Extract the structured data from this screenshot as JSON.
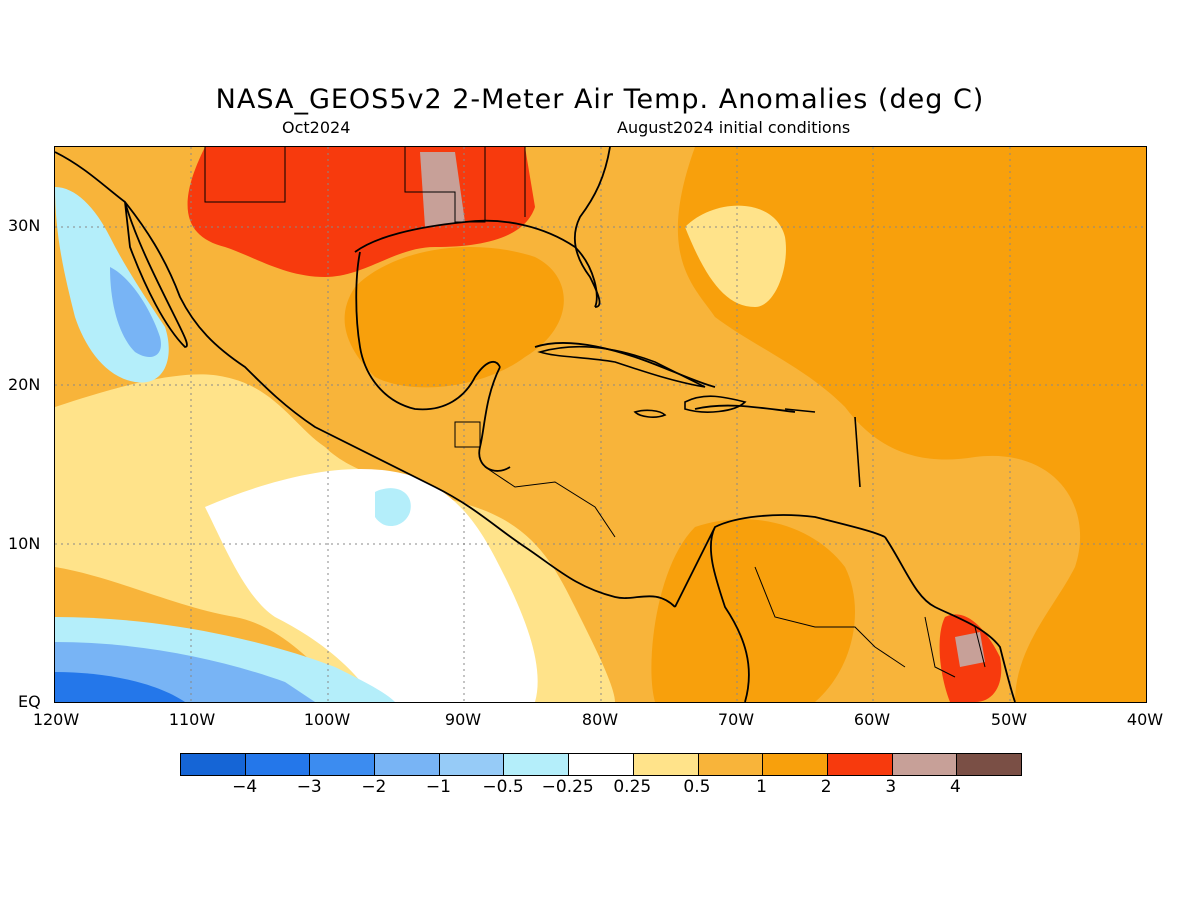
{
  "title": "NASA_GEOS5v2 2-Meter Air Temp. Anomalies (deg C)",
  "subtitle_left": "Oct2024",
  "subtitle_right": "August2024 initial conditions",
  "lat_labels": [
    "30N",
    "20N",
    "10N",
    "EQ"
  ],
  "lon_labels": [
    "120W",
    "110W",
    "100W",
    "90W",
    "80W",
    "70W",
    "60W",
    "50W",
    "40W"
  ],
  "colorbar": {
    "labels": [
      "-4",
      "-3",
      "-2",
      "-1",
      "-0.5",
      "-0.25",
      "0.25",
      "0.5",
      "1",
      "2",
      "3",
      "4"
    ],
    "colors": [
      "#1565d6",
      "#2477ea",
      "#3c8cf0",
      "#78b4f5",
      "#96cbf7",
      "#b4eefa",
      "#ffffff",
      "#ffe38a",
      "#f8b43a",
      "#f8a00c",
      "#f73a0d",
      "#c7a098",
      "#7a4f45"
    ]
  },
  "chart_data": {
    "type": "heatmap",
    "variable": "2-Meter Air Temp. Anomalies",
    "units": "deg C",
    "lon_range": [
      -120,
      -40
    ],
    "lat_range": [
      0,
      35
    ],
    "levels": [
      -4,
      -3,
      -2,
      -1,
      -0.5,
      -0.25,
      0.25,
      0.5,
      1,
      2,
      3,
      4
    ],
    "grid": true
  }
}
